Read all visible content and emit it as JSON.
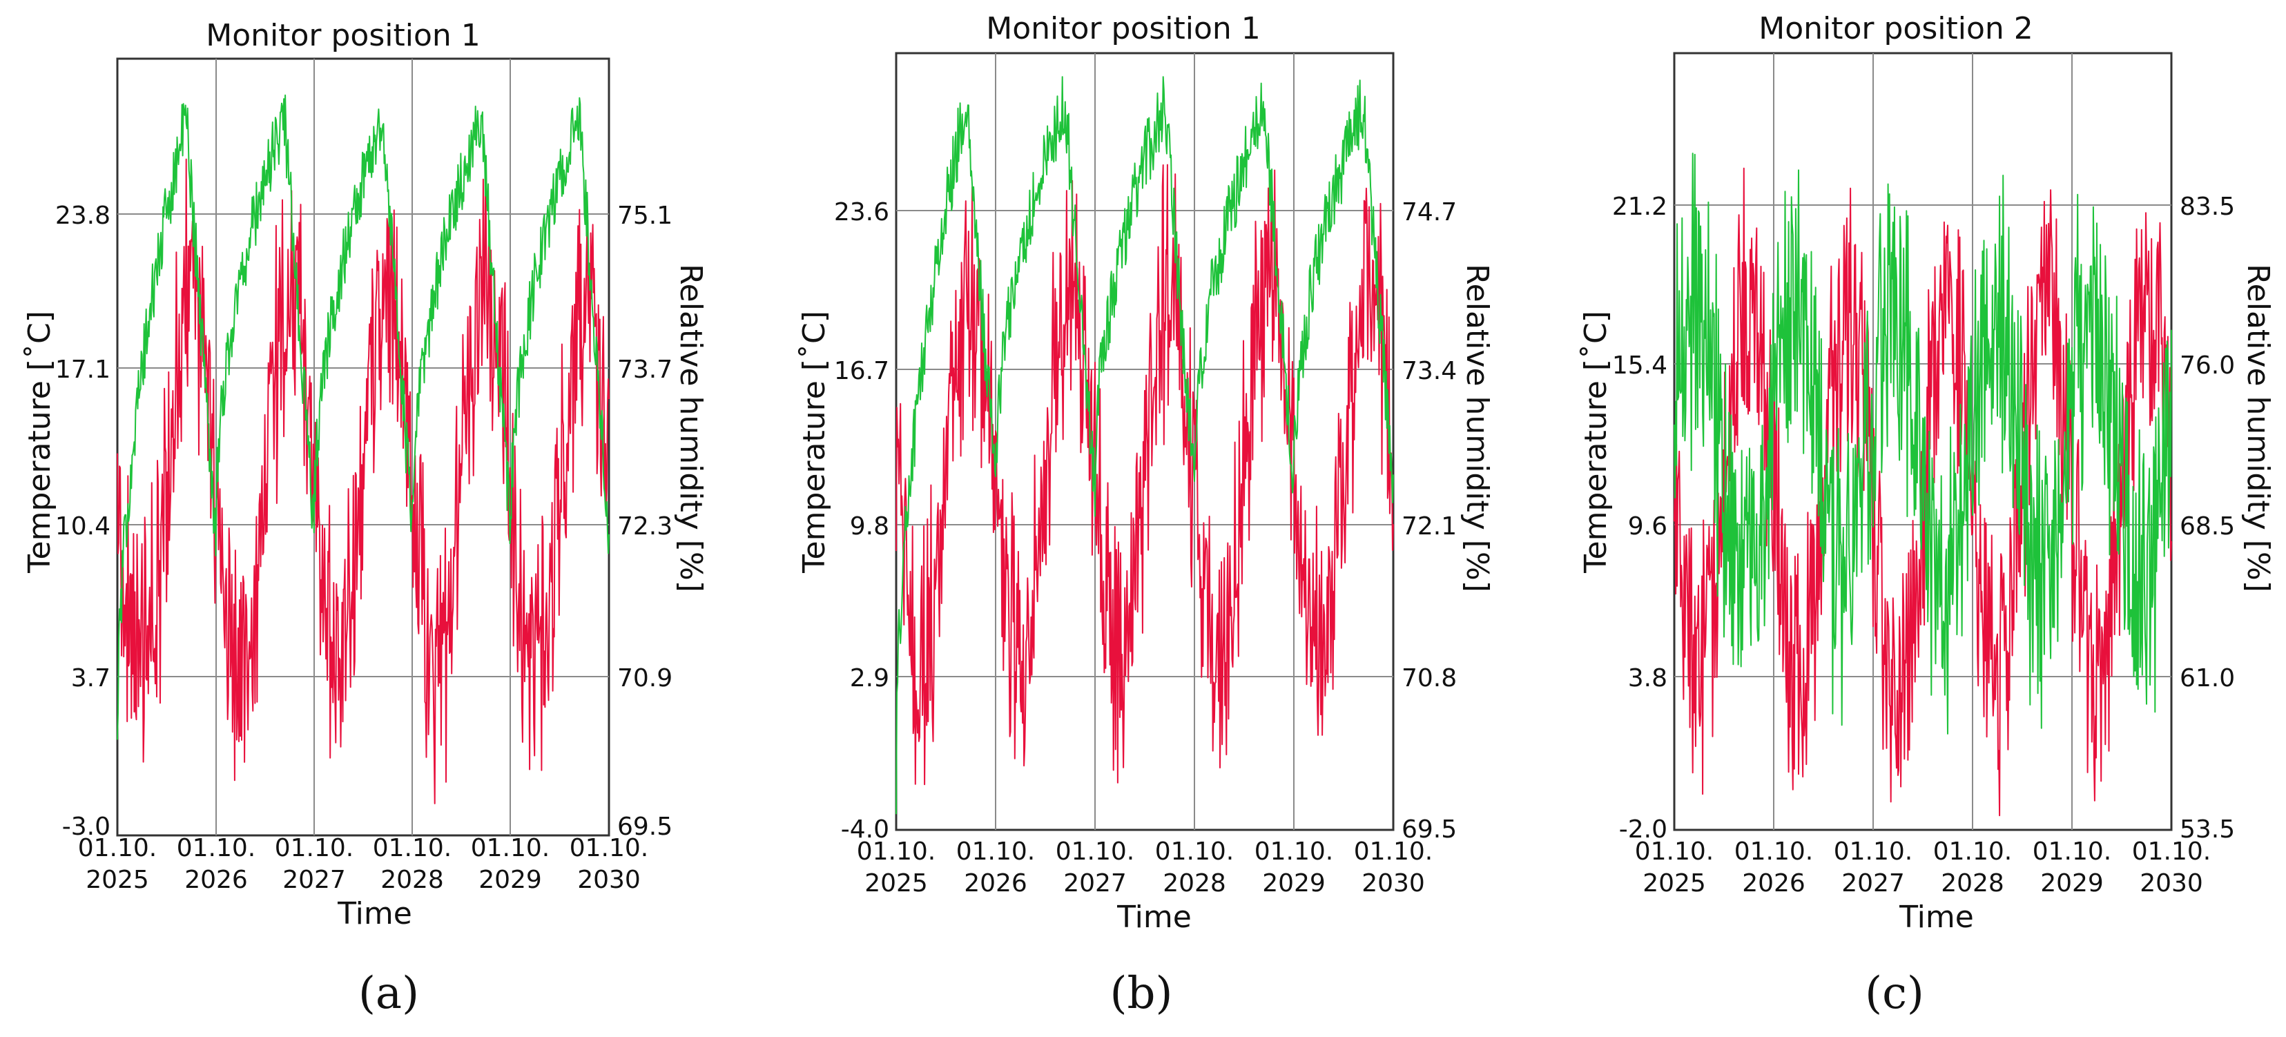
{
  "colors": {
    "temperature": "#e8103c",
    "humidity": "#1ec23a",
    "grid": "#8a8a8a",
    "frame": "#333333",
    "background": "#ffffff"
  },
  "chart_data": [
    {
      "type": "line",
      "panel": "(a)",
      "title": "Monitor position 1",
      "xlabel": "Time",
      "ylabel": "Temperature [˚C]",
      "y2label": "Relative humidity [%]",
      "x_ticks": [
        [
          "01.10.",
          "2025"
        ],
        [
          "01.10.",
          "2026"
        ],
        [
          "01.10.",
          "2027"
        ],
        [
          "01.10.",
          "2028"
        ],
        [
          "01.10.",
          "2029"
        ],
        [
          "01.10.",
          "2030"
        ]
      ],
      "ylim": [
        -3.0,
        30.5
      ],
      "y_ticks": [
        "-3.0",
        "3.7",
        "10.4",
        "17.1",
        "23.8"
      ],
      "y_tick_values": [
        -3.0,
        3.7,
        10.4,
        17.1,
        23.8
      ],
      "y2lim": [
        69.5,
        76.5
      ],
      "y2_ticks": [
        "69.5",
        "70.9",
        "72.3",
        "73.7",
        "75.1"
      ],
      "y2_tick_values": [
        69.5,
        70.9,
        72.3,
        73.7,
        75.1
      ],
      "series": [
        {
          "name": "Temperature",
          "axis": "left",
          "color": "#e8103c",
          "years": 5,
          "mean": 12.0,
          "amplitude": 8.0,
          "noise": 7.0,
          "peak_phase": 0.75
        },
        {
          "name": "Relative humidity",
          "axis": "right",
          "color": "#1ec23a",
          "years": 5,
          "start": 70.2,
          "peak": 76.0,
          "low": 72.2,
          "noise": 0.3,
          "shape": "sawtooth"
        }
      ]
    },
    {
      "type": "line",
      "panel": "(b)",
      "title": "Monitor position 1",
      "xlabel": "Time",
      "ylabel": "Temperature [˚C]",
      "y2label": "Relative humidity [%]",
      "x_ticks": [
        [
          "01.10.",
          "2025"
        ],
        [
          "01.10.",
          "2026"
        ],
        [
          "01.10.",
          "2027"
        ],
        [
          "01.10.",
          "2028"
        ],
        [
          "01.10.",
          "2029"
        ],
        [
          "01.10.",
          "2030"
        ]
      ],
      "ylim": [
        -4.0,
        31.0
      ],
      "y_ticks": [
        "-4.0",
        "2.9",
        "9.8",
        "16.7",
        "23.6"
      ],
      "y_tick_values": [
        -4.0,
        2.9,
        9.8,
        16.7,
        23.6
      ],
      "y2lim": [
        69.5,
        76.2
      ],
      "y2_ticks": [
        "69.5",
        "70.8",
        "72.1",
        "73.4",
        "74.7"
      ],
      "y2_tick_values": [
        69.5,
        70.8,
        72.1,
        73.4,
        74.7
      ],
      "series": [
        {
          "name": "Temperature",
          "axis": "left",
          "color": "#e8103c",
          "years": 5,
          "mean": 12.0,
          "amplitude": 8.0,
          "noise": 7.0,
          "peak_phase": 0.75
        },
        {
          "name": "Relative humidity",
          "axis": "right",
          "color": "#1ec23a",
          "years": 5,
          "start": 69.9,
          "peak": 75.6,
          "low": 72.4,
          "noise": 0.3,
          "shape": "sawtooth"
        }
      ]
    },
    {
      "type": "line",
      "panel": "(c)",
      "title": "Monitor position 2",
      "xlabel": "Time",
      "ylabel": "Temperature [˚C]",
      "y2label": "Relative humidity [%]",
      "x_ticks": [
        [
          "01.10.",
          "2025"
        ],
        [
          "01.10.",
          "2026"
        ],
        [
          "01.10.",
          "2027"
        ],
        [
          "01.10.",
          "2028"
        ],
        [
          "01.10.",
          "2029"
        ],
        [
          "01.10.",
          "2030"
        ]
      ],
      "ylim": [
        -2.0,
        27.5
      ],
      "y_ticks": [
        "-2.0",
        "3.8",
        "9.6",
        "15.4",
        "21.2"
      ],
      "y_tick_values": [
        -2.0,
        3.8,
        9.6,
        15.4,
        21.2
      ],
      "y2lim": [
        53.5,
        91.5
      ],
      "y2_ticks": [
        "53.5",
        "61.0",
        "68.5",
        "76.0",
        "83.5"
      ],
      "y2_tick_values": [
        53.5,
        61.0,
        68.5,
        76.0,
        83.5
      ],
      "series": [
        {
          "name": "Temperature",
          "axis": "left",
          "color": "#e8103c",
          "years": 5,
          "mean": 10.5,
          "amplitude": 7.0,
          "noise": 6.0,
          "peak_phase": 0.75
        },
        {
          "name": "Relative humidity",
          "axis": "right",
          "color": "#1ec23a",
          "years": 5,
          "mean": 72.0,
          "amplitude": 6.5,
          "noise": 9.0,
          "peak_phase": 0.2,
          "shape": "seasonal"
        }
      ]
    }
  ]
}
